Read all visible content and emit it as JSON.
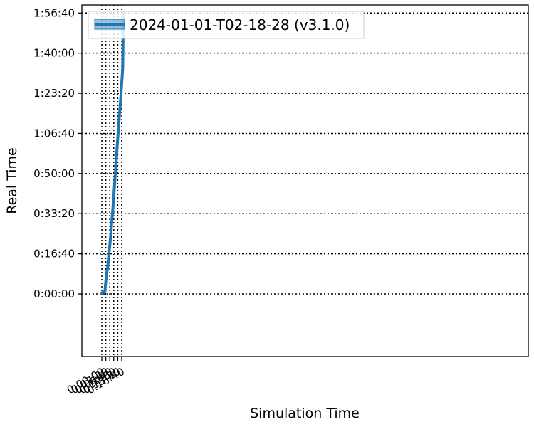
{
  "chart_data": {
    "type": "line",
    "title": "",
    "xlabel": "Simulation Time",
    "ylabel": "Real Time",
    "grid": true,
    "grid_style": "dotted",
    "legend_position": "top-left",
    "x_tick_rotation_deg": 30,
    "xlim": [
      -1000,
      21400
    ],
    "ylim": [
      -1560,
      7200
    ],
    "x_ticks": [
      {
        "value": 0,
        "label": "0:00:00"
      },
      {
        "value": 200,
        "label": "0:03:20"
      },
      {
        "value": 400,
        "label": "0:06:40"
      },
      {
        "value": 600,
        "label": "0:10:00"
      },
      {
        "value": 800,
        "label": "0:13:20"
      },
      {
        "value": 1000,
        "label": "0:16:40"
      }
    ],
    "y_ticks": [
      {
        "value": 0,
        "label": "0:00:00"
      },
      {
        "value": 1000,
        "label": "0:16:40"
      },
      {
        "value": 2000,
        "label": "0:33:20"
      },
      {
        "value": 3000,
        "label": "0:50:00"
      },
      {
        "value": 4000,
        "label": "1:06:40"
      },
      {
        "value": 5000,
        "label": "1:23:20"
      },
      {
        "value": 6000,
        "label": "1:40:00"
      },
      {
        "value": 7000,
        "label": "1:56:40"
      }
    ],
    "series": [
      {
        "name": "2024-01-01-T02-18-28 (v3.1.0)",
        "color": "#1f77b4",
        "x": [
          0,
          10,
          50,
          100,
          150,
          160,
          180,
          200,
          220,
          240,
          250,
          270,
          290,
          300,
          320,
          350,
          400,
          450,
          500,
          550,
          600,
          650,
          700,
          750,
          800,
          850,
          900,
          950,
          1000,
          1050,
          1080
        ],
        "y": [
          0,
          30,
          40,
          45,
          50,
          55,
          200,
          320,
          400,
          460,
          520,
          590,
          640,
          700,
          800,
          980,
          1200,
          1480,
          1790,
          2100,
          2430,
          2790,
          3160,
          3520,
          3880,
          4230,
          4550,
          4880,
          5260,
          5640,
          7000
        ]
      }
    ]
  }
}
